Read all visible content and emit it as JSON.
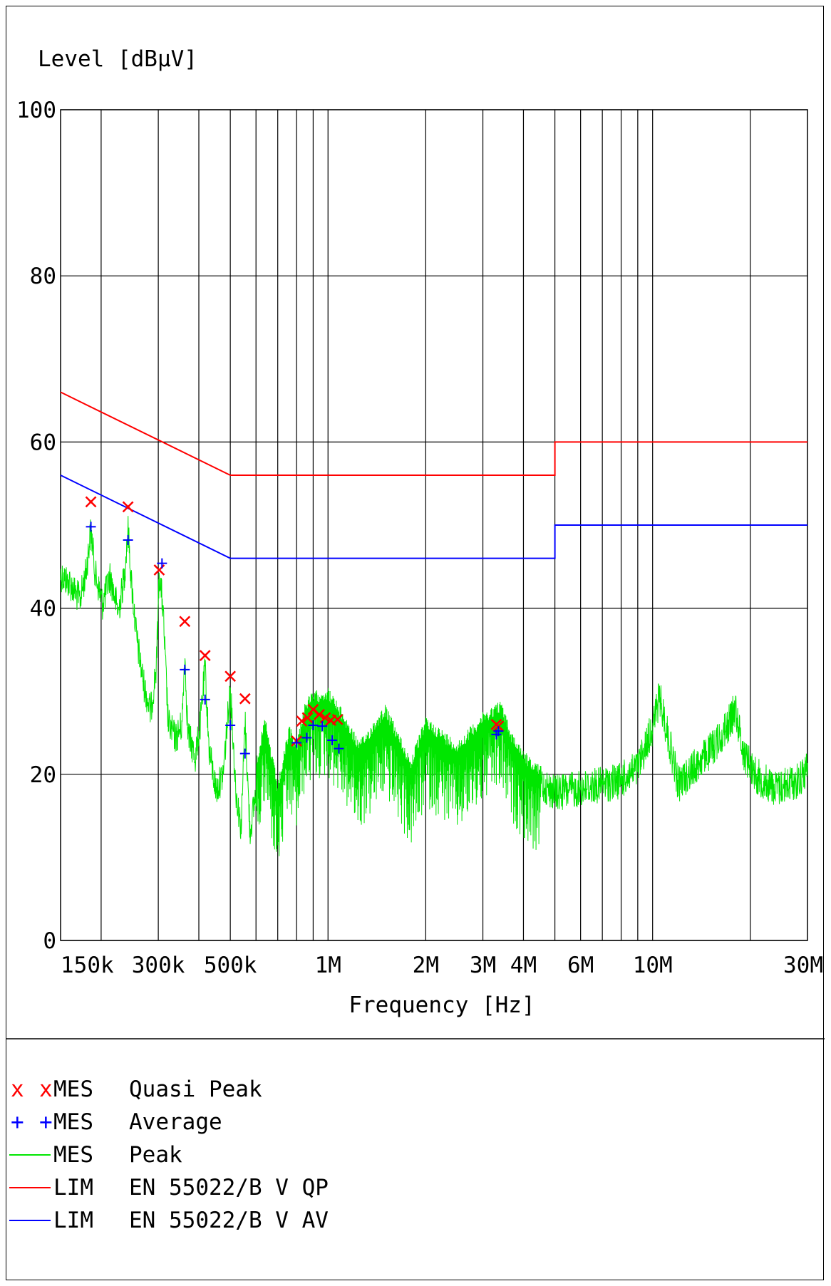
{
  "chart_data": {
    "type": "line",
    "ylabel": "Level [dBµV]",
    "xlabel": "Frequency [Hz]",
    "x_scale": "log",
    "xlim": [
      150000,
      30000000
    ],
    "ylim": [
      0,
      100
    ],
    "yticks": [
      0,
      20,
      40,
      60,
      80,
      100
    ],
    "ytick_labels": [
      "0",
      "20",
      "40",
      "60",
      "80",
      "100"
    ],
    "xticks_labeled": [
      {
        "value": 150000,
        "label": "150k"
      },
      {
        "value": 300000,
        "label": "300k"
      },
      {
        "value": 500000,
        "label": "500k"
      },
      {
        "value": 1000000,
        "label": "1M"
      },
      {
        "value": 2000000,
        "label": "2M"
      },
      {
        "value": 3000000,
        "label": "3M"
      },
      {
        "value": 4000000,
        "label": "4M"
      },
      {
        "value": 6000000,
        "label": "6M"
      },
      {
        "value": 10000000,
        "label": "10M"
      },
      {
        "value": 30000000,
        "label": "30M"
      }
    ],
    "x_gridlines": [
      200000,
      300000,
      400000,
      500000,
      600000,
      700000,
      800000,
      900000,
      1000000,
      2000000,
      3000000,
      4000000,
      5000000,
      6000000,
      7000000,
      8000000,
      9000000,
      10000000,
      20000000
    ],
    "grid": true,
    "limits": [
      {
        "name": "EN 55022/B V QP",
        "color": "#ff0000",
        "points": [
          [
            150000,
            66
          ],
          [
            500000,
            56
          ],
          [
            5000000,
            56
          ],
          [
            5000000,
            60
          ],
          [
            30000000,
            60
          ]
        ]
      },
      {
        "name": "EN 55022/B V AV",
        "color": "#0000ff",
        "points": [
          [
            150000,
            56
          ],
          [
            500000,
            46
          ],
          [
            5000000,
            46
          ],
          [
            5000000,
            50
          ],
          [
            30000000,
            50
          ]
        ]
      }
    ],
    "qp_markers": {
      "color": "#ff0000",
      "symbol": "x",
      "points": [
        [
          186000,
          52.8
        ],
        [
          242000,
          52.2
        ],
        [
          302000,
          44.6
        ],
        [
          362000,
          38.4
        ],
        [
          418000,
          34.3
        ],
        [
          500000,
          31.8
        ],
        [
          555000,
          29.1
        ],
        [
          800000,
          24.0
        ],
        [
          830000,
          26.4
        ],
        [
          865000,
          26.8
        ],
        [
          900000,
          27.8
        ],
        [
          940000,
          27.2
        ],
        [
          980000,
          26.8
        ],
        [
          1020000,
          26.5
        ],
        [
          1070000,
          26.6
        ],
        [
          3300000,
          26.0
        ],
        [
          3350000,
          25.8
        ]
      ]
    },
    "avg_markers": {
      "color": "#0000ff",
      "symbol": "+",
      "points": [
        [
          186000,
          49.8
        ],
        [
          242000,
          48.2
        ],
        [
          308000,
          45.4
        ],
        [
          362000,
          32.6
        ],
        [
          418000,
          29.0
        ],
        [
          500000,
          25.9
        ],
        [
          555000,
          22.5
        ],
        [
          800000,
          23.8
        ],
        [
          860000,
          24.4
        ],
        [
          900000,
          25.9
        ],
        [
          960000,
          25.8
        ],
        [
          1030000,
          24.1
        ],
        [
          1080000,
          23.1
        ],
        [
          3300000,
          24.8
        ],
        [
          3350000,
          25.2
        ]
      ]
    },
    "peak_trace": {
      "color": "#00e600",
      "envelope": [
        [
          150000,
          48
        ],
        [
          160000,
          47
        ],
        [
          172000,
          45
        ],
        [
          180000,
          48.5
        ],
        [
          186000,
          53.5
        ],
        [
          192000,
          48
        ],
        [
          202000,
          44.5
        ],
        [
          213000,
          47.8
        ],
        [
          226000,
          43.5
        ],
        [
          236000,
          48
        ],
        [
          242000,
          53.6
        ],
        [
          248000,
          47
        ],
        [
          258000,
          40
        ],
        [
          270000,
          35
        ],
        [
          284000,
          31.5
        ],
        [
          296000,
          37
        ],
        [
          302000,
          48.5
        ],
        [
          310000,
          44
        ],
        [
          322000,
          30
        ],
        [
          340000,
          28.3
        ],
        [
          355000,
          30
        ],
        [
          362000,
          38.5
        ],
        [
          370000,
          29
        ],
        [
          390000,
          26
        ],
        [
          404000,
          30
        ],
        [
          418000,
          36.8
        ],
        [
          430000,
          27
        ],
        [
          452000,
          22
        ],
        [
          475000,
          24
        ],
        [
          500000,
          34.5
        ],
        [
          520000,
          22
        ],
        [
          540000,
          17.5
        ],
        [
          555000,
          30.5
        ],
        [
          575000,
          17
        ],
        [
          600000,
          22
        ],
        [
          640000,
          27
        ],
        [
          700000,
          19
        ],
        [
          760000,
          26
        ],
        [
          800000,
          24
        ],
        [
          850000,
          29
        ],
        [
          900000,
          30
        ],
        [
          1000000,
          30.5
        ],
        [
          1100000,
          28
        ],
        [
          1250000,
          24
        ],
        [
          1500000,
          28.5
        ],
        [
          1800000,
          22
        ],
        [
          2000000,
          27
        ],
        [
          2500000,
          24
        ],
        [
          3000000,
          27.5
        ],
        [
          3400000,
          29
        ],
        [
          3700000,
          25
        ],
        [
          4200000,
          22
        ],
        [
          5000000,
          20
        ],
        [
          6000000,
          20.5
        ],
        [
          7000000,
          21
        ],
        [
          8000000,
          21.5
        ],
        [
          9000000,
          23
        ],
        [
          10000000,
          28
        ],
        [
          10500000,
          31.5
        ],
        [
          11000000,
          28
        ],
        [
          12000000,
          21
        ],
        [
          13000000,
          22.5
        ],
        [
          15000000,
          25
        ],
        [
          17000000,
          28
        ],
        [
          18000000,
          30.2
        ],
        [
          19000000,
          25
        ],
        [
          21000000,
          22
        ],
        [
          24000000,
          20.5
        ],
        [
          28000000,
          21.5
        ],
        [
          30000000,
          23
        ]
      ]
    },
    "legend": [
      {
        "symbol": "x",
        "prefix": "x",
        "name": "MES",
        "description": "Quasi Peak",
        "color": "#ff0000"
      },
      {
        "symbol": "+",
        "prefix": "+",
        "name": "MES",
        "description": "Average",
        "color": "#0000ff"
      },
      {
        "symbol": "line",
        "prefix": "",
        "name": "MES",
        "description": "Peak",
        "color": "#00e600"
      },
      {
        "symbol": "line",
        "prefix": "",
        "name": "LIM",
        "description": "EN 55022/B V QP",
        "color": "#ff0000"
      },
      {
        "symbol": "line",
        "prefix": "",
        "name": "LIM",
        "description": "EN 55022/B V AV",
        "color": "#0000ff"
      }
    ],
    "legend_position": "bottom"
  }
}
